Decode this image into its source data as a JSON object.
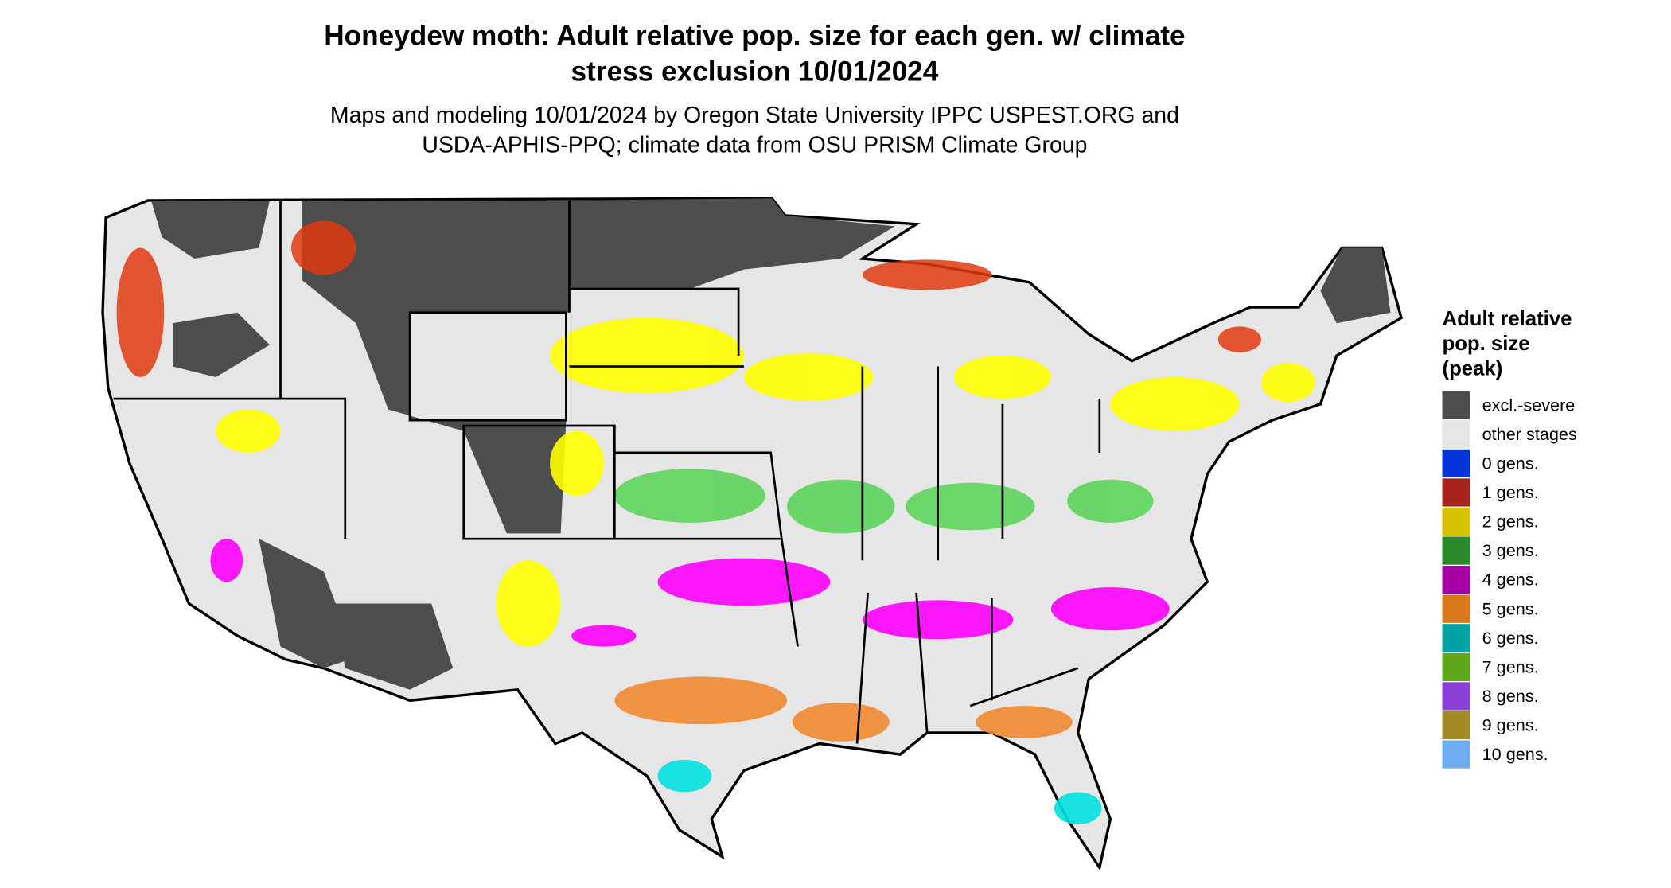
{
  "title": [
    "Honeydew moth: Adult relative pop. size for each gen. w/ climate",
    "stress exclusion 10/01/2024"
  ],
  "subtitle": [
    "Maps and modeling 10/01/2024 by Oregon State University IPPC USPEST.ORG and",
    "USDA-APHIS-PPQ; climate data from OSU PRISM Climate Group"
  ],
  "legend": {
    "title": [
      "Adult relative",
      "pop. size",
      "(peak)"
    ],
    "items": [
      {
        "label": "excl.-severe",
        "color": "#4d4d4d"
      },
      {
        "label": "other stages",
        "color": "#e6e6e6"
      },
      {
        "label": "0 gens.",
        "color": "#0433d9"
      },
      {
        "label": "1 gens.",
        "color": "#a8241a"
      },
      {
        "label": "2 gens.",
        "color": "#d9c300"
      },
      {
        "label": "3 gens.",
        "color": "#2a8a2a"
      },
      {
        "label": "4 gens.",
        "color": "#a600a6"
      },
      {
        "label": "5 gens.",
        "color": "#d9781a"
      },
      {
        "label": "6 gens.",
        "color": "#00a3a3"
      },
      {
        "label": "7 gens.",
        "color": "#5ea61a"
      },
      {
        "label": "8 gens.",
        "color": "#8a3fd9"
      },
      {
        "label": "9 gens.",
        "color": "#a38a26"
      },
      {
        "label": "10 gens.",
        "color": "#6eaff2"
      }
    ]
  }
}
